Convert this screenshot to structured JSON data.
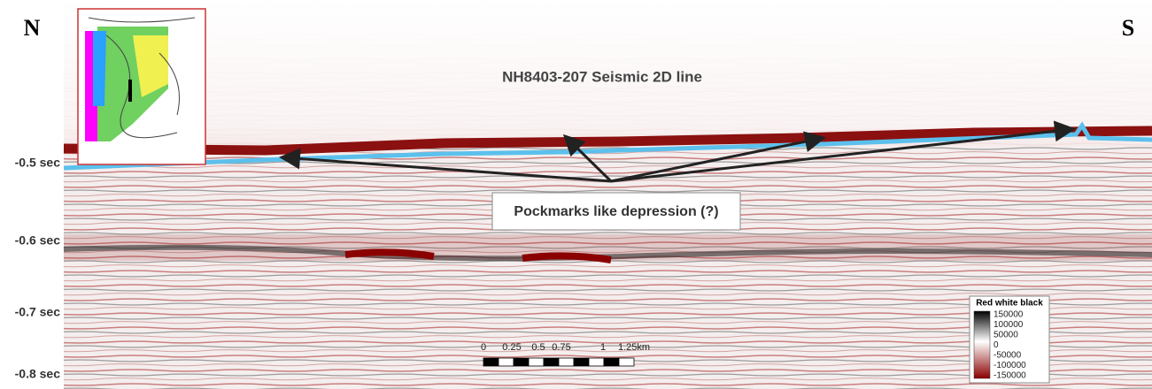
{
  "labels": {
    "north": "N",
    "south": "S"
  },
  "title": "NH8403-207 Seismic 2D line",
  "annotation": "Pockmarks like depression (?)",
  "time_axis": [
    "-0.5 sec",
    "-0.6 sec",
    "-0.7 sec",
    "-0.8 sec"
  ],
  "scale_bar": [
    "0",
    "0.25",
    "0.5",
    "0.75",
    "1",
    "1.25km"
  ],
  "legend": {
    "title": "Red white black",
    "labels": [
      "150000",
      "100000",
      "50000",
      "0",
      "-50000",
      "-100000",
      "-150000"
    ]
  }
}
